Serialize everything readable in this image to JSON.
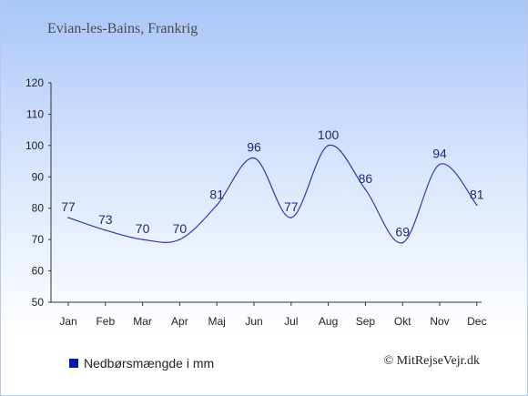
{
  "header": {
    "title": "Evian-les-Bains, Frankrig"
  },
  "legend": {
    "label": "Nedbørsmængde i mm",
    "color": "#0019a6"
  },
  "credit": "© MitRejseVejr.dk",
  "chart_data": {
    "type": "line",
    "categories": [
      "Jan",
      "Feb",
      "Mar",
      "Apr",
      "Maj",
      "Jun",
      "Jul",
      "Aug",
      "Sep",
      "Okt",
      "Nov",
      "Dec"
    ],
    "series": [
      {
        "name": "Nedbørsmængde i mm",
        "values": [
          77,
          73,
          70,
          70,
          81,
          96,
          77,
          100,
          86,
          69,
          94,
          81
        ]
      }
    ],
    "yticks": [
      50,
      60,
      70,
      80,
      90,
      100,
      110,
      120
    ],
    "ylim": [
      50,
      120
    ],
    "grid": false,
    "legend_position": "bottom-left",
    "line_color": "#2a3bb0"
  }
}
